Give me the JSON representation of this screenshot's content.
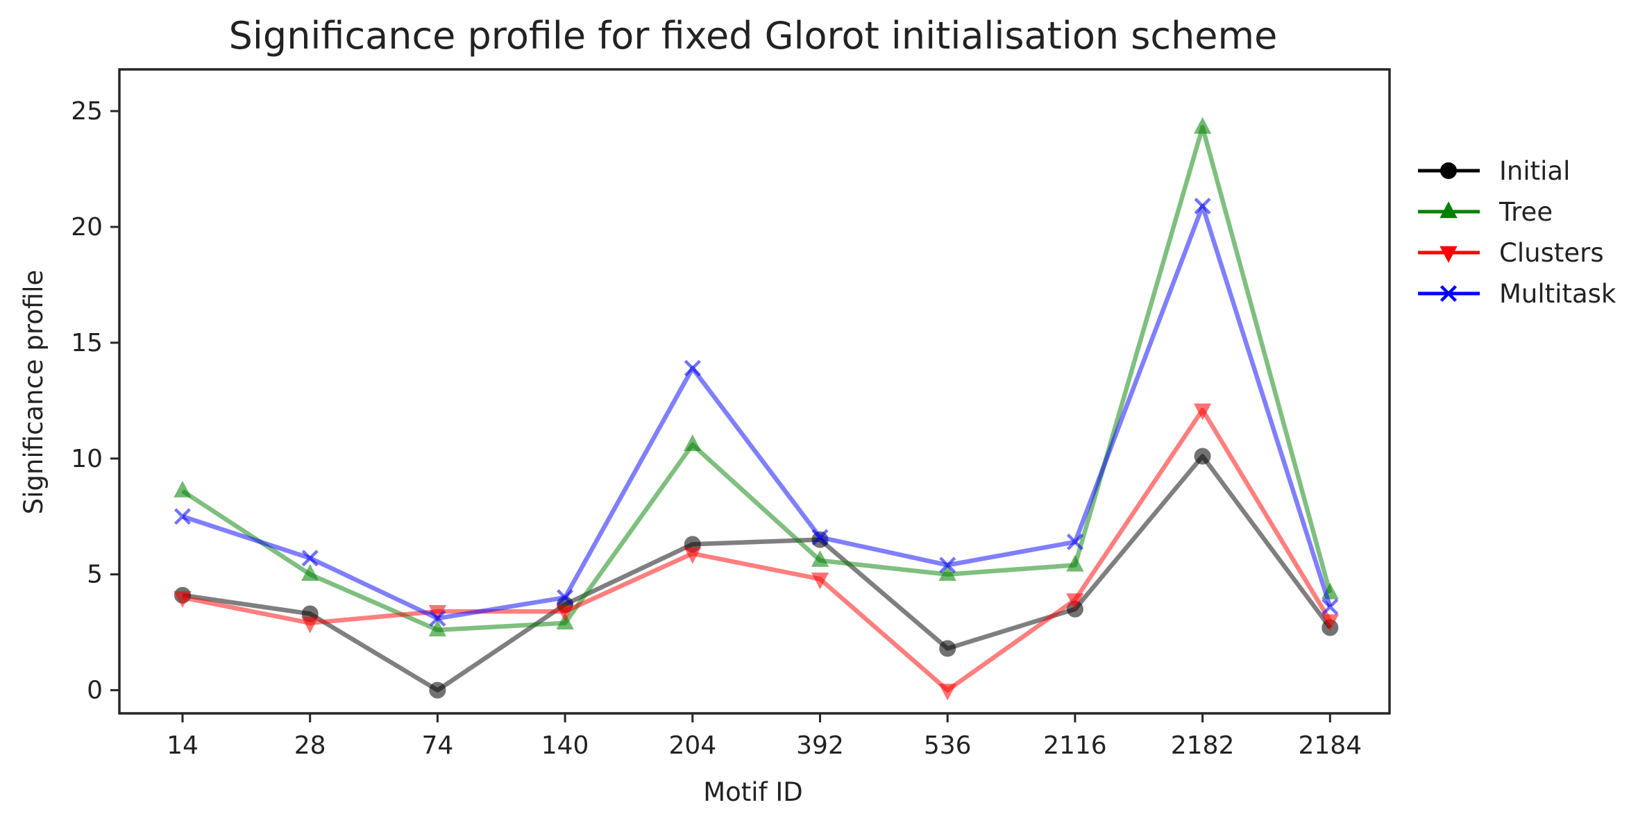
{
  "chart_data": {
    "type": "line",
    "title": "Significance profile for fixed Glorot initialisation scheme",
    "xlabel": "Motif ID",
    "ylabel": "Significance profile",
    "categories": [
      "14",
      "28",
      "74",
      "140",
      "204",
      "392",
      "536",
      "2116",
      "2182",
      "2184"
    ],
    "ylim": [
      -1,
      26.8
    ],
    "yticks": [
      0,
      5,
      10,
      15,
      20,
      25
    ],
    "grid": false,
    "legend_position": "outside-right",
    "series": [
      {
        "name": "Initial",
        "color": "#000000",
        "marker": "circle",
        "values": [
          4.1,
          3.3,
          0.0,
          3.7,
          6.3,
          6.5,
          1.8,
          3.5,
          10.1,
          2.7
        ]
      },
      {
        "name": "Tree",
        "color": "#008000",
        "marker": "triangle-up",
        "values": [
          8.6,
          5.0,
          2.6,
          2.9,
          10.6,
          5.6,
          5.0,
          5.4,
          24.3,
          4.2
        ]
      },
      {
        "name": "Clusters",
        "color": "#ff0000",
        "marker": "triangle-down",
        "values": [
          4.0,
          2.9,
          3.4,
          3.4,
          5.9,
          4.8,
          0.0,
          3.9,
          12.1,
          3.0
        ]
      },
      {
        "name": "Multitask",
        "color": "#0000ff",
        "marker": "x",
        "values": [
          7.5,
          5.7,
          3.1,
          4.0,
          13.9,
          6.6,
          5.4,
          6.4,
          20.9,
          3.6
        ]
      }
    ]
  }
}
